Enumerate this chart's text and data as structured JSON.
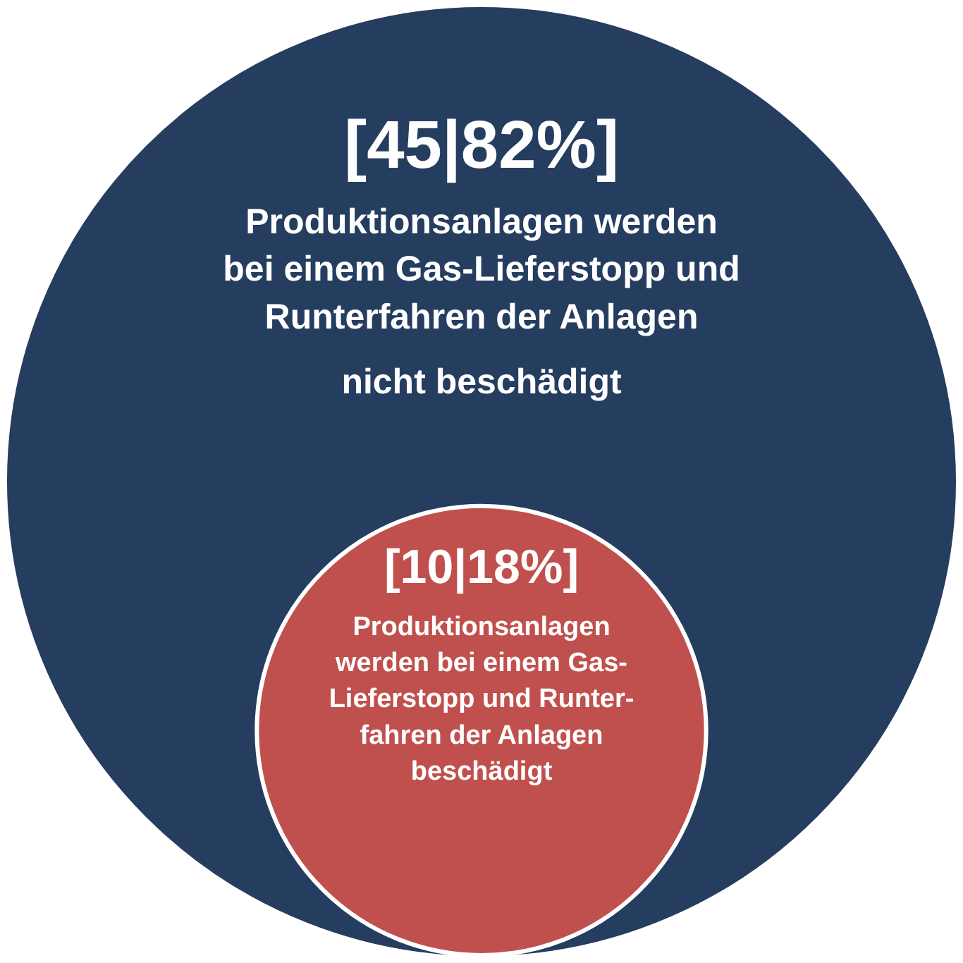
{
  "chart_data": {
    "type": "other",
    "categories": [
      "Produktionsanlagen werden\nbei einem Gas-Lieferstopp und\nRunterfahren der Anlagen\nnicht beschädigt",
      "Produktionsanlagen\nwerden bei einem Gas-\nLieferstopp und Runter-\nfahren der Anlagen\nbeschädigt"
    ],
    "values": [
      45,
      10
    ],
    "value_labels": [
      "[45|82%]",
      "[10|18%]"
    ],
    "colors": [
      "#253d5f",
      "#c0504d"
    ]
  }
}
